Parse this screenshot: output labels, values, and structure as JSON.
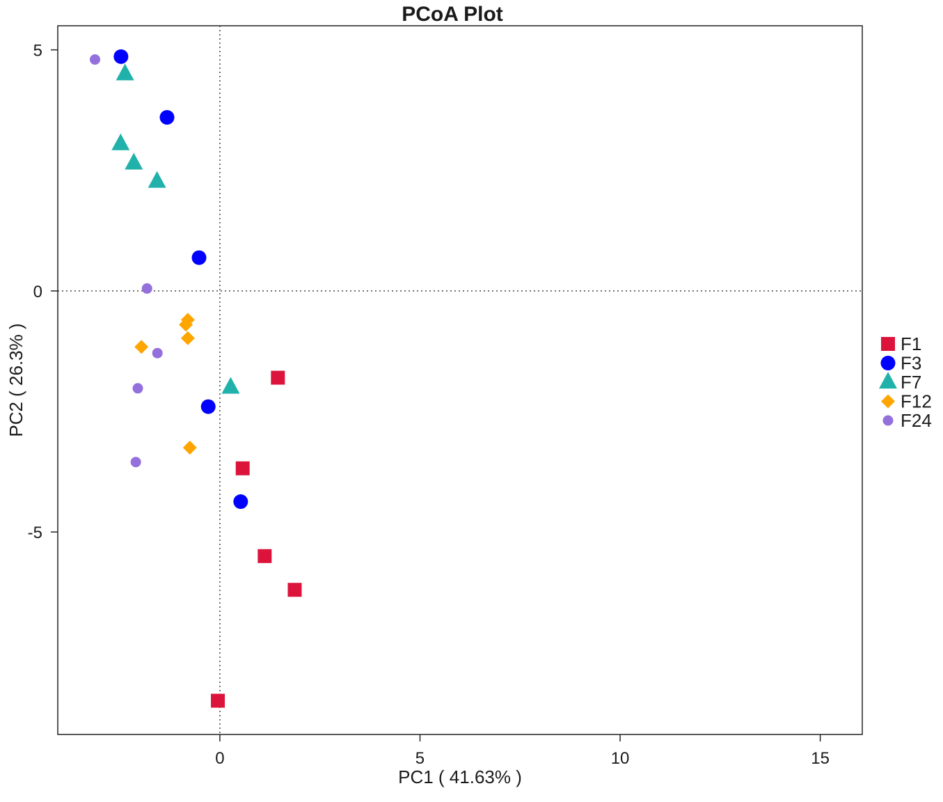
{
  "chart_data": {
    "type": "scatter",
    "title": "PCoA Plot",
    "xlabel": "PC1 ( 41.63% )",
    "ylabel": "PC2 ( 26.3% )",
    "xlim": [
      -4.05,
      16.05
    ],
    "ylim": [
      -9.2,
      5.5
    ],
    "x_ticks": [
      0,
      5,
      10,
      15
    ],
    "y_ticks": [
      5,
      0,
      -5
    ],
    "x_tick_labels": [
      "0",
      "5",
      "10",
      "15"
    ],
    "y_tick_labels": [
      "5",
      "0",
      "-5"
    ],
    "reference_lines": {
      "x": 0,
      "y": 0,
      "style": "dotted"
    },
    "grid": false,
    "legend_position": "right",
    "series": [
      {
        "name": "F1",
        "marker": "square",
        "color": "#DC143C",
        "points": [
          [
            1.45,
            -1.8
          ],
          [
            0.57,
            -3.68
          ],
          [
            1.12,
            -5.5
          ],
          [
            1.87,
            -6.2
          ],
          [
            -0.05,
            -8.5
          ]
        ]
      },
      {
        "name": "F3",
        "marker": "circle",
        "color": "#0000FF",
        "points": [
          [
            -2.47,
            4.86
          ],
          [
            -1.32,
            3.6
          ],
          [
            -0.52,
            0.69
          ],
          [
            -0.29,
            -2.4
          ],
          [
            0.52,
            -4.37
          ]
        ]
      },
      {
        "name": "F7",
        "marker": "triangle",
        "color": "#20B2AA",
        "points": [
          [
            -2.37,
            4.5
          ],
          [
            -2.48,
            3.05
          ],
          [
            -2.15,
            2.65
          ],
          [
            -1.57,
            2.27
          ],
          [
            0.27,
            -2.0
          ]
        ]
      },
      {
        "name": "F12",
        "marker": "diamond",
        "color": "#FFA500",
        "points": [
          [
            -0.8,
            -0.6
          ],
          [
            -0.85,
            -0.7
          ],
          [
            -0.8,
            -0.98
          ],
          [
            -1.96,
            -1.16
          ],
          [
            -0.75,
            -3.25
          ]
        ]
      },
      {
        "name": "F24",
        "marker": "circle-small",
        "color": "#9370DB",
        "points": [
          [
            -3.12,
            4.8
          ],
          [
            -1.82,
            0.05
          ],
          [
            -1.56,
            -1.29
          ],
          [
            -2.05,
            -2.02
          ],
          [
            -2.1,
            -3.55
          ]
        ]
      }
    ]
  }
}
